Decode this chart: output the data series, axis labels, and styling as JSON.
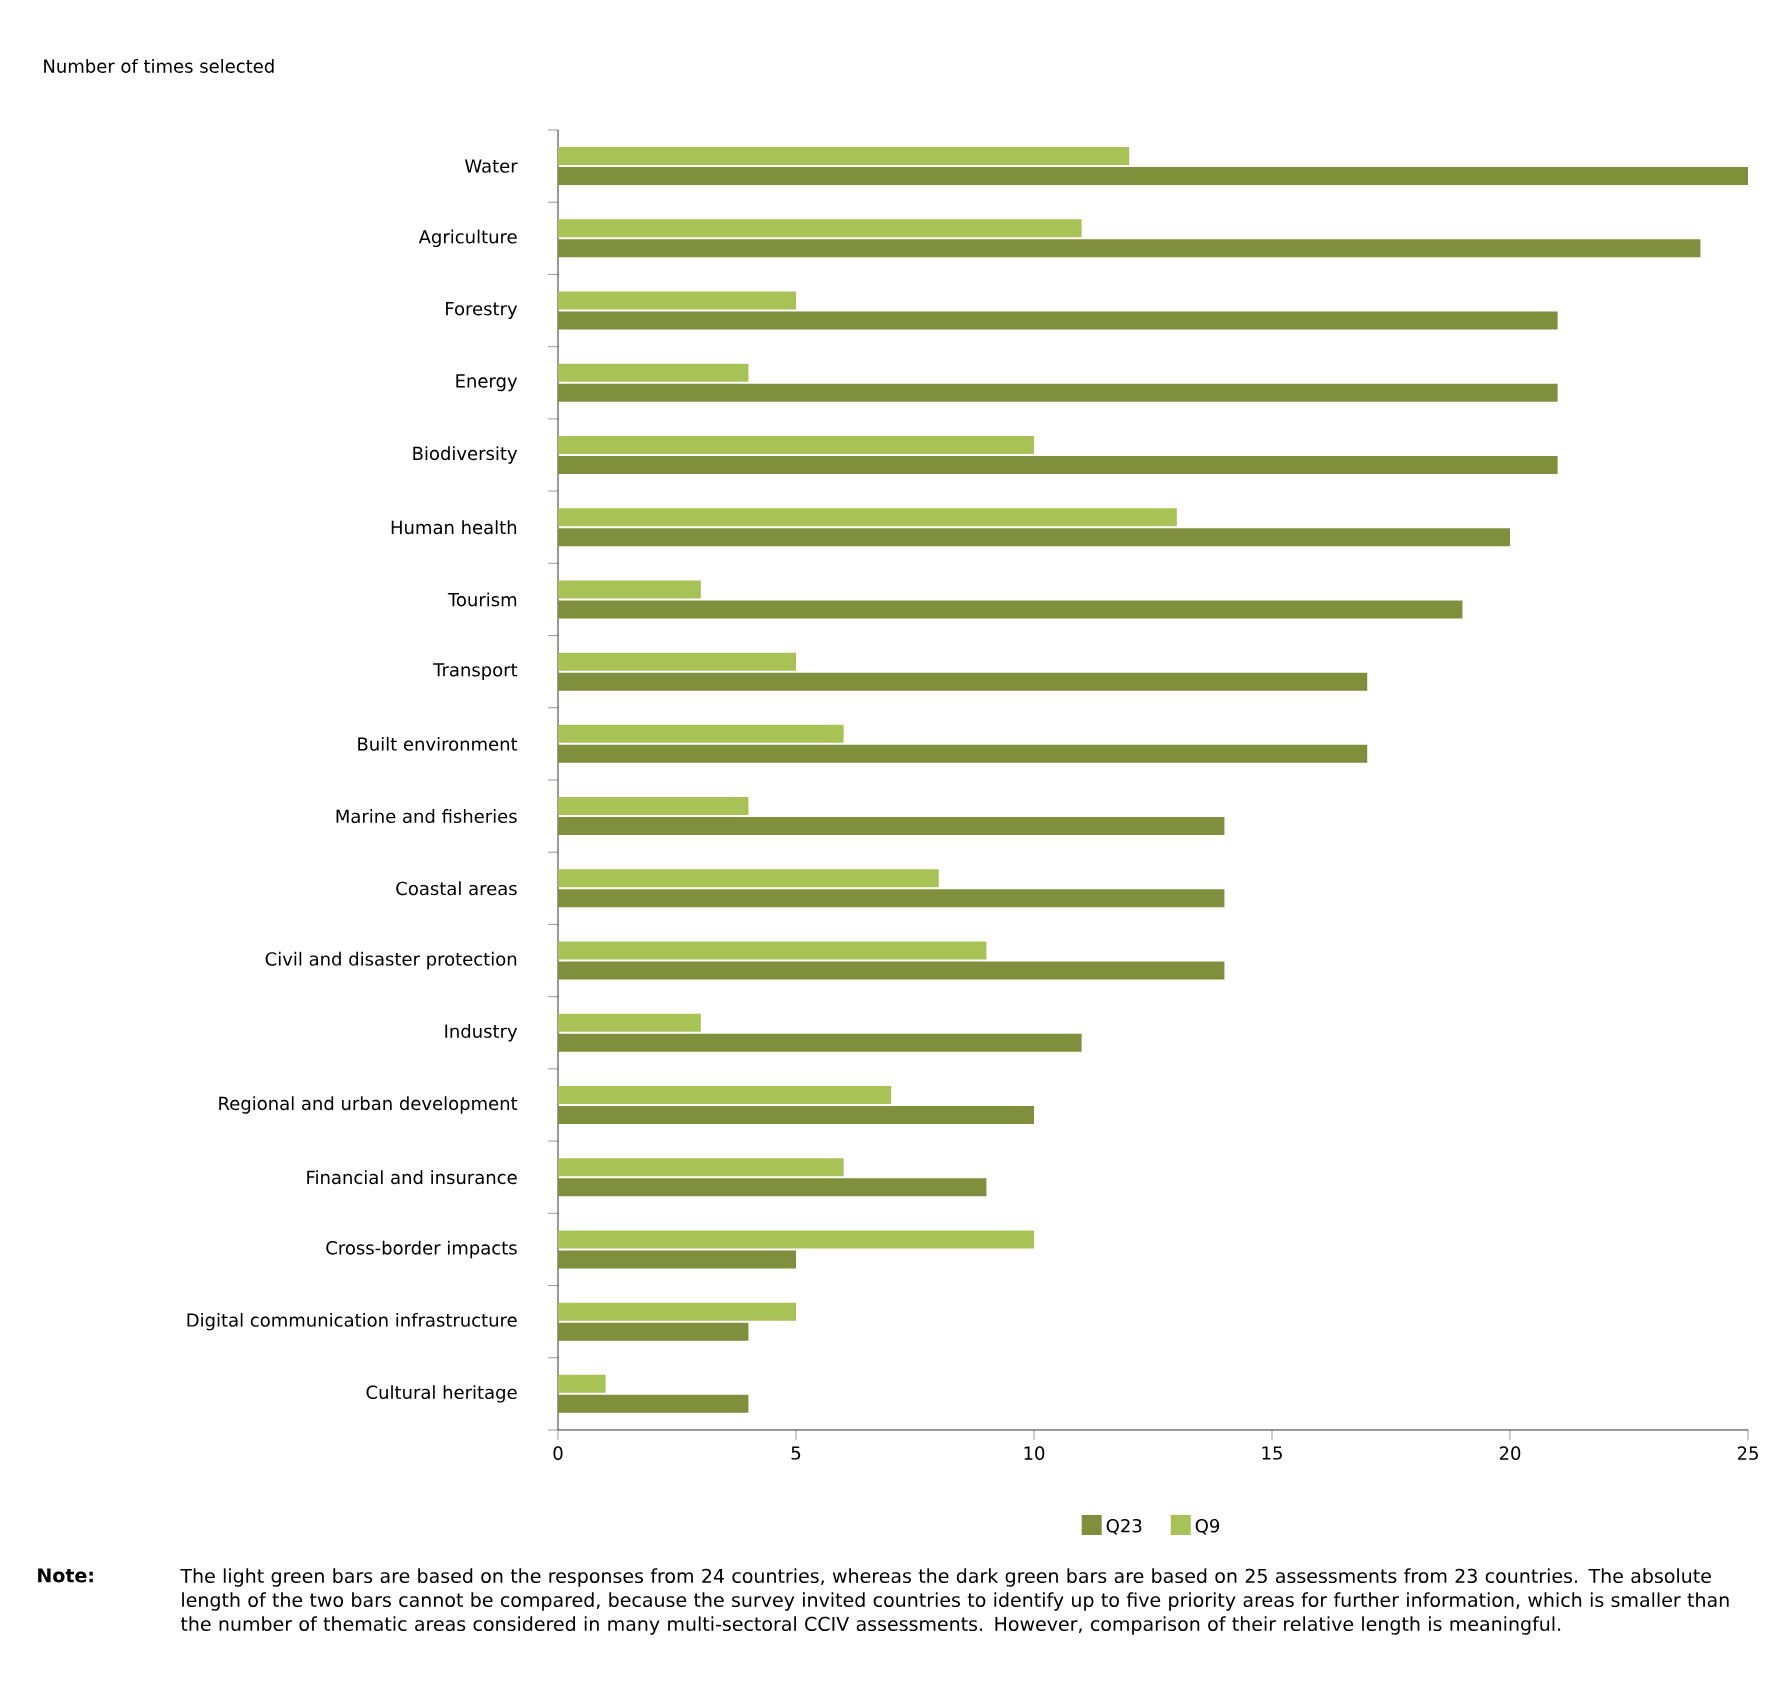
{
  "chart_data": {
    "type": "bar",
    "orientation": "horizontal",
    "xlabel": "Number of times selected",
    "categories": [
      "Water",
      "Agriculture",
      "Forestry",
      "Energy",
      "Biodiversity",
      "Human health",
      "Tourism",
      "Transport",
      "Built environment",
      "Marine and fisheries",
      "Coastal areas",
      "Civil and disaster protection",
      "Industry",
      "Regional and urban development",
      "Financial and insurance",
      "Cross-border impacts",
      "Digital communication infrastructure",
      "Cultural heritage"
    ],
    "series": [
      {
        "name": "Q23",
        "color": "#7f8f3b",
        "values": [
          25,
          24,
          21,
          21,
          21,
          20,
          19,
          17,
          17,
          14,
          14,
          14,
          11,
          10,
          9,
          5,
          4,
          4
        ]
      },
      {
        "name": "Q9",
        "color": "#a9c256",
        "values": [
          12,
          11,
          5,
          4,
          10,
          13,
          3,
          5,
          6,
          4,
          8,
          9,
          3,
          7,
          6,
          10,
          5,
          1
        ]
      }
    ],
    "xlim": [
      0,
      25
    ],
    "xticks": [
      0,
      5,
      10,
      15,
      20,
      25
    ],
    "legend": "bottom",
    "annotations": [
      "Note:",
      "The light green bars are based on the responses from 24 countries, whereas the dark green bars are based on 25 assessments from 23 countries. The absolute length of the two bars cannot be compared, because the survey invited countries to identify up to five priority areas for further information, which is smaller than the number of thematic areas considered in many multi-sectoral CCIV assessments. However, comparison of their relative length is meaningful."
    ]
  }
}
